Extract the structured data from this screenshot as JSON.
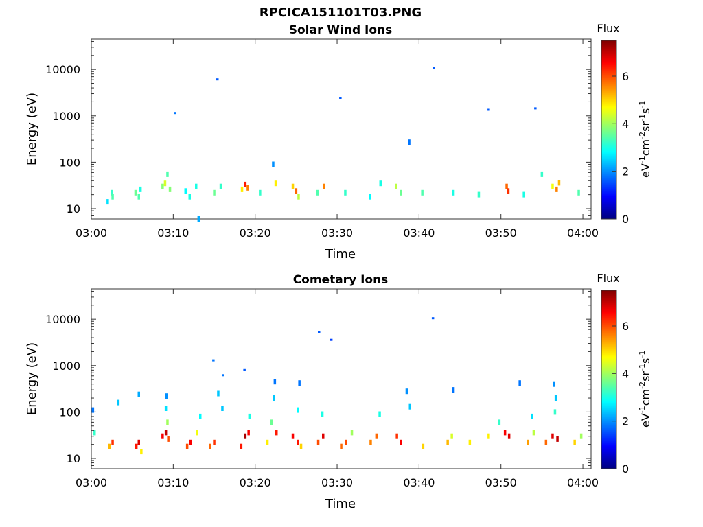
{
  "figure": {
    "title": "RPCICA151101T03.PNG",
    "colorbar_label": "Flux",
    "colorbar_unit_text": [
      "eV",
      "-1",
      "cm",
      "-2",
      "sr",
      "-1",
      "s",
      "-1"
    ],
    "colorbar_ticks": [
      "0",
      "2",
      "4",
      "6"
    ],
    "colormap": [
      "#00007f",
      "#0000ff",
      "#007fff",
      "#00ffff",
      "#7fff7f",
      "#ffff00",
      "#ff7f00",
      "#ff0000",
      "#7f0000"
    ]
  },
  "chart_data": [
    {
      "type": "heatmap",
      "title": "Solar Wind Ions",
      "xlabel": "Time",
      "ylabel": "Energy (eV)",
      "x_ticks": [
        "03:00",
        "03:10",
        "03:20",
        "03:30",
        "03:40",
        "03:50",
        "04:00"
      ],
      "x_range_minutes": [
        0,
        61
      ],
      "y_ticks": [
        "10",
        "100",
        "1000",
        "10000"
      ],
      "y_scale": "log",
      "y_range": [
        6,
        45000
      ],
      "color_range": [
        0,
        7.5
      ],
      "color_label": "Flux",
      "grid": false,
      "cells": [
        {
          "t": 2.0,
          "e": 14,
          "v": 2.6
        },
        {
          "t": 2.5,
          "e": 22,
          "v": 3.2
        },
        {
          "t": 2.6,
          "e": 18,
          "v": 3.4
        },
        {
          "t": 5.4,
          "e": 22,
          "v": 3.6
        },
        {
          "t": 5.8,
          "e": 18,
          "v": 3.4
        },
        {
          "t": 6.0,
          "e": 26,
          "v": 3.0
        },
        {
          "t": 8.7,
          "e": 30,
          "v": 3.8
        },
        {
          "t": 9.0,
          "e": 35,
          "v": 4.4
        },
        {
          "t": 9.3,
          "e": 55,
          "v": 3.4
        },
        {
          "t": 9.6,
          "e": 26,
          "v": 3.8
        },
        {
          "t": 10.2,
          "e": 1150,
          "v": 1.8
        },
        {
          "t": 11.5,
          "e": 24,
          "v": 2.8
        },
        {
          "t": 12.0,
          "e": 18,
          "v": 3.0
        },
        {
          "t": 12.8,
          "e": 30,
          "v": 3.0
        },
        {
          "t": 13.1,
          "e": 6,
          "v": 2.2
        },
        {
          "t": 15.0,
          "e": 22,
          "v": 3.6
        },
        {
          "t": 15.4,
          "e": 6100,
          "v": 1.6
        },
        {
          "t": 15.8,
          "e": 30,
          "v": 3.2
        },
        {
          "t": 18.4,
          "e": 26,
          "v": 4.8
        },
        {
          "t": 18.8,
          "e": 33,
          "v": 6.4
        },
        {
          "t": 19.1,
          "e": 28,
          "v": 5.6
        },
        {
          "t": 20.6,
          "e": 22,
          "v": 3.2
        },
        {
          "t": 22.2,
          "e": 90,
          "v": 2.0
        },
        {
          "t": 22.5,
          "e": 35,
          "v": 4.8
        },
        {
          "t": 24.6,
          "e": 30,
          "v": 5.0
        },
        {
          "t": 25.0,
          "e": 24,
          "v": 5.8
        },
        {
          "t": 25.3,
          "e": 18,
          "v": 4.2
        },
        {
          "t": 27.6,
          "e": 22,
          "v": 3.4
        },
        {
          "t": 28.4,
          "e": 30,
          "v": 5.6
        },
        {
          "t": 30.4,
          "e": 2400,
          "v": 1.6
        },
        {
          "t": 31.0,
          "e": 22,
          "v": 3.2
        },
        {
          "t": 34.0,
          "e": 18,
          "v": 2.8
        },
        {
          "t": 35.3,
          "e": 35,
          "v": 3.0
        },
        {
          "t": 37.2,
          "e": 30,
          "v": 4.2
        },
        {
          "t": 37.8,
          "e": 22,
          "v": 3.6
        },
        {
          "t": 38.8,
          "e": 270,
          "v": 1.8
        },
        {
          "t": 40.4,
          "e": 22,
          "v": 3.4
        },
        {
          "t": 41.8,
          "e": 10800,
          "v": 1.6
        },
        {
          "t": 44.2,
          "e": 22,
          "v": 3.0
        },
        {
          "t": 47.3,
          "e": 20,
          "v": 3.2
        },
        {
          "t": 48.5,
          "e": 1350,
          "v": 1.6
        },
        {
          "t": 50.7,
          "e": 30,
          "v": 5.8
        },
        {
          "t": 50.9,
          "e": 24,
          "v": 6.2
        },
        {
          "t": 52.8,
          "e": 20,
          "v": 3.0
        },
        {
          "t": 54.2,
          "e": 1450,
          "v": 1.6
        },
        {
          "t": 55.0,
          "e": 55,
          "v": 3.2
        },
        {
          "t": 56.3,
          "e": 30,
          "v": 4.6
        },
        {
          "t": 56.8,
          "e": 26,
          "v": 5.6
        },
        {
          "t": 57.1,
          "e": 36,
          "v": 5.2
        },
        {
          "t": 59.5,
          "e": 22,
          "v": 3.4
        }
      ]
    },
    {
      "type": "heatmap",
      "title": "Cometary Ions",
      "xlabel": "Time",
      "ylabel": "Energy (eV)",
      "x_ticks": [
        "03:00",
        "03:10",
        "03:20",
        "03:30",
        "03:40",
        "03:50",
        "04:00"
      ],
      "x_range_minutes": [
        0,
        61
      ],
      "y_ticks": [
        "10",
        "100",
        "1000",
        "10000"
      ],
      "y_scale": "log",
      "y_range": [
        6,
        45000
      ],
      "color_range": [
        0,
        7.5
      ],
      "color_label": "Flux",
      "grid": false,
      "cells": [
        {
          "t": 0.2,
          "e": 110,
          "v": 1.8
        },
        {
          "t": 0.4,
          "e": 36,
          "v": 3.2
        },
        {
          "t": 2.2,
          "e": 18,
          "v": 5.2
        },
        {
          "t": 2.6,
          "e": 22,
          "v": 6.2
        },
        {
          "t": 3.3,
          "e": 160,
          "v": 2.4
        },
        {
          "t": 5.5,
          "e": 18,
          "v": 6.4
        },
        {
          "t": 5.8,
          "e": 22,
          "v": 6.8
        },
        {
          "t": 6.1,
          "e": 14,
          "v": 4.8
        },
        {
          "t": 5.8,
          "e": 240,
          "v": 2.2
        },
        {
          "t": 8.7,
          "e": 30,
          "v": 6.6
        },
        {
          "t": 9.1,
          "e": 36,
          "v": 7.0
        },
        {
          "t": 9.4,
          "e": 26,
          "v": 6.0
        },
        {
          "t": 9.3,
          "e": 60,
          "v": 4.0
        },
        {
          "t": 9.1,
          "e": 120,
          "v": 2.6
        },
        {
          "t": 9.2,
          "e": 220,
          "v": 2.0
        },
        {
          "t": 11.7,
          "e": 18,
          "v": 6.0
        },
        {
          "t": 12.1,
          "e": 22,
          "v": 6.6
        },
        {
          "t": 12.9,
          "e": 36,
          "v": 4.6
        },
        {
          "t": 13.3,
          "e": 80,
          "v": 2.8
        },
        {
          "t": 14.5,
          "e": 18,
          "v": 5.8
        },
        {
          "t": 15.0,
          "e": 22,
          "v": 6.2
        },
        {
          "t": 14.9,
          "e": 1300,
          "v": 1.8
        },
        {
          "t": 15.5,
          "e": 250,
          "v": 2.4
        },
        {
          "t": 16.0,
          "e": 120,
          "v": 2.4
        },
        {
          "t": 16.1,
          "e": 620,
          "v": 1.8
        },
        {
          "t": 18.3,
          "e": 18,
          "v": 6.4
        },
        {
          "t": 18.8,
          "e": 30,
          "v": 7.2
        },
        {
          "t": 19.2,
          "e": 36,
          "v": 6.6
        },
        {
          "t": 18.7,
          "e": 800,
          "v": 1.6
        },
        {
          "t": 19.3,
          "e": 80,
          "v": 3.0
        },
        {
          "t": 21.5,
          "e": 22,
          "v": 4.8
        },
        {
          "t": 22.0,
          "e": 60,
          "v": 3.6
        },
        {
          "t": 22.3,
          "e": 200,
          "v": 2.4
        },
        {
          "t": 22.6,
          "e": 36,
          "v": 6.4
        },
        {
          "t": 22.4,
          "e": 450,
          "v": 1.8
        },
        {
          "t": 24.6,
          "e": 30,
          "v": 6.6
        },
        {
          "t": 25.2,
          "e": 22,
          "v": 6.4
        },
        {
          "t": 25.6,
          "e": 18,
          "v": 5.0
        },
        {
          "t": 25.4,
          "e": 420,
          "v": 1.8
        },
        {
          "t": 25.2,
          "e": 110,
          "v": 2.8
        },
        {
          "t": 27.7,
          "e": 22,
          "v": 6.0
        },
        {
          "t": 28.3,
          "e": 30,
          "v": 6.8
        },
        {
          "t": 27.8,
          "e": 5200,
          "v": 1.6
        },
        {
          "t": 29.3,
          "e": 3600,
          "v": 1.4
        },
        {
          "t": 28.2,
          "e": 90,
          "v": 3.0
        },
        {
          "t": 30.5,
          "e": 18,
          "v": 5.8
        },
        {
          "t": 31.1,
          "e": 22,
          "v": 6.0
        },
        {
          "t": 31.8,
          "e": 36,
          "v": 4.0
        },
        {
          "t": 34.1,
          "e": 22,
          "v": 5.6
        },
        {
          "t": 34.8,
          "e": 30,
          "v": 5.8
        },
        {
          "t": 35.2,
          "e": 90,
          "v": 3.0
        },
        {
          "t": 37.3,
          "e": 30,
          "v": 6.2
        },
        {
          "t": 37.8,
          "e": 22,
          "v": 6.6
        },
        {
          "t": 38.5,
          "e": 280,
          "v": 2.0
        },
        {
          "t": 38.9,
          "e": 130,
          "v": 2.4
        },
        {
          "t": 40.5,
          "e": 18,
          "v": 5.0
        },
        {
          "t": 41.7,
          "e": 10500,
          "v": 1.6
        },
        {
          "t": 43.5,
          "e": 22,
          "v": 5.2
        },
        {
          "t": 44.0,
          "e": 30,
          "v": 4.4
        },
        {
          "t": 44.2,
          "e": 300,
          "v": 1.8
        },
        {
          "t": 46.2,
          "e": 22,
          "v": 4.8
        },
        {
          "t": 48.5,
          "e": 30,
          "v": 4.8
        },
        {
          "t": 50.5,
          "e": 36,
          "v": 6.6
        },
        {
          "t": 51.0,
          "e": 30,
          "v": 6.8
        },
        {
          "t": 49.8,
          "e": 60,
          "v": 3.2
        },
        {
          "t": 52.3,
          "e": 420,
          "v": 1.8
        },
        {
          "t": 53.3,
          "e": 22,
          "v": 5.4
        },
        {
          "t": 54.0,
          "e": 36,
          "v": 4.2
        },
        {
          "t": 53.8,
          "e": 80,
          "v": 2.6
        },
        {
          "t": 55.5,
          "e": 22,
          "v": 5.8
        },
        {
          "t": 56.3,
          "e": 30,
          "v": 6.8
        },
        {
          "t": 56.9,
          "e": 26,
          "v": 7.0
        },
        {
          "t": 56.7,
          "e": 200,
          "v": 2.4
        },
        {
          "t": 56.5,
          "e": 400,
          "v": 2.0
        },
        {
          "t": 56.6,
          "e": 100,
          "v": 3.2
        },
        {
          "t": 59.0,
          "e": 22,
          "v": 5.0
        },
        {
          "t": 59.8,
          "e": 30,
          "v": 4.0
        }
      ]
    }
  ]
}
